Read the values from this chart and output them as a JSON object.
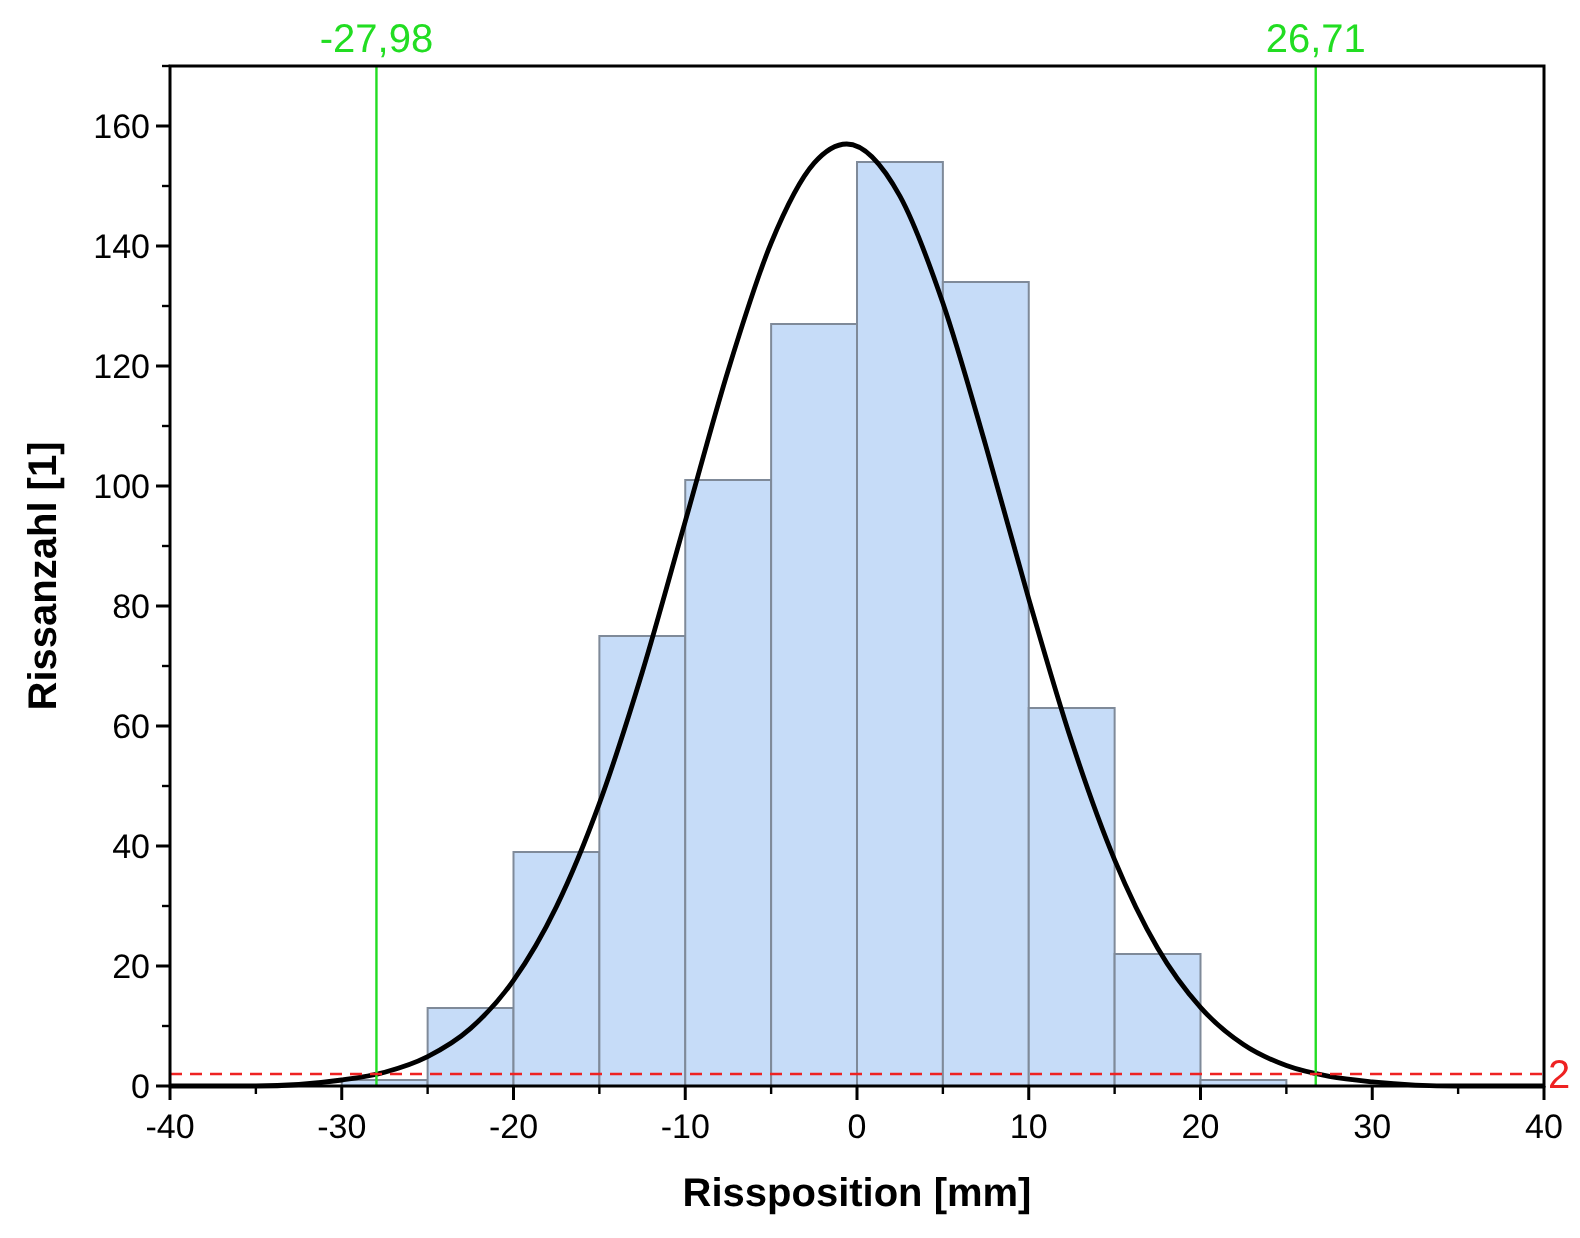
{
  "chart_data": {
    "type": "histogram",
    "xlabel": "Rissposition [mm]",
    "ylabel": "Rissanzahl [1]",
    "bins": [
      -30,
      -25,
      -20,
      -15,
      -10,
      -5,
      0,
      5,
      10,
      15,
      20,
      25
    ],
    "values": [
      1,
      13,
      39,
      75,
      101,
      127,
      154,
      134,
      63,
      22,
      1
    ],
    "color": "#c6dcf8",
    "series": [
      {
        "type": "line",
        "color": "#000000",
        "x": [
          -40,
          -35,
          -30,
          -27.5,
          -25,
          -22.5,
          -20,
          -17.5,
          -15,
          -12.5,
          -10,
          -7.5,
          -5,
          -2.5,
          -0.6,
          2.5,
          5,
          7.5,
          10,
          12.5,
          15,
          17.5,
          20,
          22.5,
          25,
          27.5,
          30,
          35,
          40
        ],
        "values": [
          0,
          0,
          1.0,
          2.3,
          4.9,
          9.6,
          17.6,
          29.9,
          47.1,
          69.0,
          94.1,
          119.3,
          140.5,
          153.8,
          157,
          148.3,
          130.5,
          106.7,
          81.2,
          57.4,
          37.7,
          23.0,
          13.1,
          6.9,
          3.4,
          1.6,
          0.7,
          0,
          0
        ]
      }
    ],
    "xlim": [
      -40,
      40
    ],
    "xticks": [
      -40,
      -30,
      -20,
      -10,
      0,
      10,
      20,
      30,
      40
    ],
    "ylim": [
      0,
      170
    ],
    "yticks": [
      0,
      20,
      40,
      60,
      80,
      100,
      120,
      140,
      160
    ],
    "ref_lines": [
      {
        "axis": "x",
        "value": -27.98,
        "label": "-27,98",
        "color": "#22dd22",
        "line_style": "solid"
      },
      {
        "axis": "x",
        "value": 26.71,
        "label": "26,71",
        "color": "#22dd22",
        "line_style": "solid"
      },
      {
        "axis": "y",
        "value": 2,
        "label": "2",
        "color": "#ee2222",
        "line_style": "dashed"
      }
    ],
    "grid": false
  }
}
